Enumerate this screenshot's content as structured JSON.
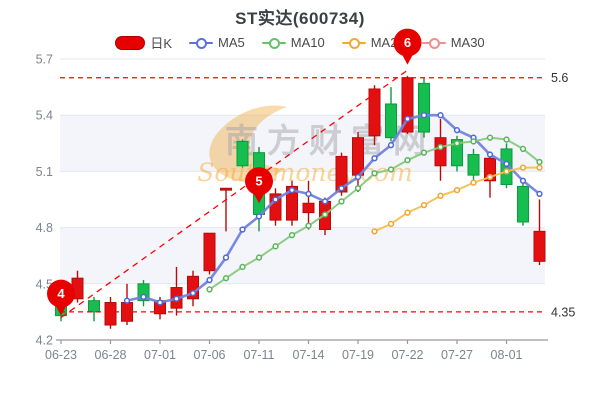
{
  "title": "ST实达(600734)",
  "legend": {
    "items": [
      {
        "label": "日K",
        "type": "swatch",
        "color": "#e60000"
      },
      {
        "label": "MA5",
        "type": "line",
        "color": "#5a73dc"
      },
      {
        "label": "MA10",
        "type": "line",
        "color": "#6abf69"
      },
      {
        "label": "MA20",
        "type": "line",
        "color": "#f2a932"
      },
      {
        "label": "MA30",
        "type": "line",
        "color": "#ef8f8f"
      }
    ]
  },
  "chart_data": {
    "type": "candlestick",
    "title": "ST实达(600734)",
    "y_axis": {
      "min": 4.2,
      "max": 5.7,
      "ticks": [
        "4.2",
        "4.5",
        "4.8",
        "5.1",
        "5.4",
        "5.7"
      ]
    },
    "x_tick_labels": [
      "06-23",
      "06-28",
      "07-01",
      "07-06",
      "07-11",
      "07-14",
      "07-19",
      "07-22",
      "07-27",
      "08-01"
    ],
    "x_tick_every": 3,
    "shaded_bands": [
      [
        4.5,
        4.8
      ],
      [
        5.1,
        5.4
      ]
    ],
    "candles": [
      {
        "date": "06-23",
        "open": 4.4,
        "close": 4.33,
        "high": 4.42,
        "low": 4.3
      },
      {
        "date": "06-24",
        "open": 4.42,
        "close": 4.53,
        "high": 4.57,
        "low": 4.4
      },
      {
        "date": "06-27",
        "open": 4.41,
        "close": 4.35,
        "high": 4.43,
        "low": 4.3
      },
      {
        "date": "06-28",
        "open": 4.28,
        "close": 4.4,
        "high": 4.43,
        "low": 4.26
      },
      {
        "date": "06-29",
        "open": 4.3,
        "close": 4.4,
        "high": 4.5,
        "low": 4.28
      },
      {
        "date": "06-30",
        "open": 4.5,
        "close": 4.41,
        "high": 4.52,
        "low": 4.38
      },
      {
        "date": "07-01",
        "open": 4.34,
        "close": 4.41,
        "high": 4.43,
        "low": 4.31
      },
      {
        "date": "07-04",
        "open": 4.37,
        "close": 4.48,
        "high": 4.59,
        "low": 4.33
      },
      {
        "date": "07-05",
        "open": 4.42,
        "close": 4.54,
        "high": 4.57,
        "low": 4.38
      },
      {
        "date": "07-06",
        "open": 4.57,
        "close": 4.77,
        "high": 4.77,
        "low": 4.55
      },
      {
        "date": "07-07",
        "open": 5.0,
        "close": 5.01,
        "high": 5.01,
        "low": 4.78
      },
      {
        "date": "07-08",
        "open": 5.26,
        "close": 5.13,
        "high": 5.27,
        "low": 5.12
      },
      {
        "date": "07-11",
        "open": 5.2,
        "close": 4.87,
        "high": 5.23,
        "low": 4.78
      },
      {
        "date": "07-12",
        "open": 4.84,
        "close": 4.98,
        "high": 5.01,
        "low": 4.81
      },
      {
        "date": "07-13",
        "open": 4.84,
        "close": 5.02,
        "high": 5.05,
        "low": 4.81
      },
      {
        "date": "07-14",
        "open": 4.88,
        "close": 4.93,
        "high": 5.05,
        "low": 4.79
      },
      {
        "date": "07-15",
        "open": 4.79,
        "close": 4.94,
        "high": 4.96,
        "low": 4.76
      },
      {
        "date": "07-18",
        "open": 4.99,
        "close": 5.18,
        "high": 5.2,
        "low": 4.97
      },
      {
        "date": "07-19",
        "open": 5.08,
        "close": 5.28,
        "high": 5.31,
        "low": 4.99
      },
      {
        "date": "07-20",
        "open": 5.29,
        "close": 5.54,
        "high": 5.56,
        "low": 5.24
      },
      {
        "date": "07-21",
        "open": 5.46,
        "close": 5.28,
        "high": 5.55,
        "low": 5.26
      },
      {
        "date": "07-22",
        "open": 5.31,
        "close": 5.6,
        "high": 5.61,
        "low": 5.3
      },
      {
        "date": "07-25",
        "open": 5.57,
        "close": 5.31,
        "high": 5.6,
        "low": 5.28
      },
      {
        "date": "07-26",
        "open": 5.13,
        "close": 5.28,
        "high": 5.38,
        "low": 5.05
      },
      {
        "date": "07-27",
        "open": 5.27,
        "close": 5.13,
        "high": 5.29,
        "low": 5.1
      },
      {
        "date": "07-28",
        "open": 5.19,
        "close": 5.08,
        "high": 5.22,
        "low": 5.04
      },
      {
        "date": "07-29",
        "open": 5.05,
        "close": 5.17,
        "high": 5.19,
        "low": 4.96
      },
      {
        "date": "08-01",
        "open": 5.22,
        "close": 5.03,
        "high": 5.25,
        "low": 5.01
      },
      {
        "date": "08-02",
        "open": 5.02,
        "close": 4.83,
        "high": 5.04,
        "low": 4.81
      },
      {
        "date": "08-03",
        "open": 4.62,
        "close": 4.78,
        "high": 4.95,
        "low": 4.6
      }
    ],
    "ma_series": [
      {
        "name": "MA5",
        "start_index": 4,
        "line_color": "#7282de",
        "marker_color": "#4d68d9",
        "width": 2.6,
        "values": [
          4.41,
          4.43,
          4.4,
          4.42,
          4.45,
          4.52,
          4.64,
          4.79,
          4.86,
          4.95,
          5.0,
          4.98,
          4.94,
          5.01,
          5.07,
          5.17,
          5.24,
          5.38,
          5.4,
          5.4,
          5.32,
          5.28,
          5.19,
          5.14,
          5.05,
          4.98
        ]
      },
      {
        "name": "MA10",
        "start_index": 9,
        "line_color": "#86c97e",
        "marker_color": "#58b558",
        "width": 2,
        "values": [
          4.47,
          4.53,
          4.59,
          4.64,
          4.7,
          4.76,
          4.81,
          4.87,
          4.94,
          5.01,
          5.09,
          5.11,
          5.16,
          5.2,
          5.23,
          5.25,
          5.26,
          5.28,
          5.27,
          5.22,
          5.15
        ]
      },
      {
        "name": "MA20",
        "start_index": 19,
        "line_color": "#f7c04f",
        "marker_color": "#f2a532",
        "width": 2,
        "values": [
          4.78,
          4.82,
          4.88,
          4.92,
          4.97,
          5.0,
          5.04,
          5.07,
          5.1,
          5.12,
          5.12
        ]
      },
      {
        "name": "MA30",
        "start_index": 29,
        "line_color": "#ef8f8f",
        "marker_color": "#e87b7b",
        "width": 2,
        "values": []
      }
    ],
    "ref_lines": [
      {
        "value": 5.6,
        "label": "5.6"
      },
      {
        "value": 4.35,
        "label": "4.35"
      }
    ],
    "trend_line": {
      "from_index": 0,
      "from_value": 4.32,
      "to_index": 21,
      "to_value": 5.64
    },
    "markers": [
      {
        "label": "4",
        "index": 0,
        "tip_value": 4.33
      },
      {
        "label": "5",
        "index": 12,
        "tip_value": 4.93
      },
      {
        "label": "6",
        "index": 21,
        "tip_value": 5.67
      }
    ],
    "colors": {
      "up_fill": "#e21010",
      "up_stroke": "#b50b0b",
      "down_fill": "#16bd4f",
      "down_stroke": "#0e9a3e",
      "ref_line": "#ff0000",
      "grid": "#e4e7ee",
      "band": "#f3f5fa",
      "axis": "#999999",
      "tick_text": "#7d848e",
      "right_label_text": "#333333",
      "balloon": "#e60000"
    },
    "watermark": {
      "cjk": "南方财富网",
      "latin": "Southmoney.com",
      "swoosh_color": "#f0a83a"
    }
  }
}
